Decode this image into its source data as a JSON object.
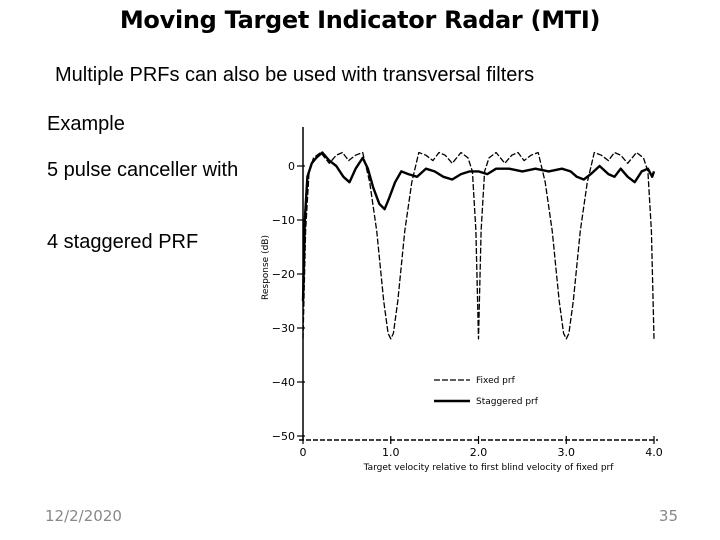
{
  "slide": {
    "title": "Moving Target Indicator Radar (MTI)",
    "subtitle": "Multiple PRFs can also be used with transversal filters",
    "lines": [
      "Example",
      "5 pulse canceller with",
      "4 staggered PRF"
    ],
    "date": "12/2/2020",
    "page": "35"
  },
  "chart_data": {
    "type": "line",
    "xlabel": "Target velocity relative to first blind velocity of fixed prf",
    "ylabel": "Response (dB)",
    "xlim": [
      0,
      4.0
    ],
    "ylim": [
      -50,
      5
    ],
    "x_ticks": [
      "0",
      "1.0",
      "2.0",
      "3.0",
      "4.0"
    ],
    "y_ticks": [
      "0",
      "−10",
      "−20",
      "−30",
      "−40",
      "−50"
    ],
    "legend_position": "lower-right",
    "series": [
      {
        "name": "Fixed prf",
        "style": "dashed-thin",
        "points": [
          [
            0,
            -32
          ],
          [
            0.03,
            -12
          ],
          [
            0.07,
            -1
          ],
          [
            0.12,
            1.5
          ],
          [
            0.2,
            2.5
          ],
          [
            0.3,
            0.5
          ],
          [
            0.38,
            2
          ],
          [
            0.45,
            2.5
          ],
          [
            0.52,
            1
          ],
          [
            0.6,
            2
          ],
          [
            0.68,
            2.5
          ],
          [
            0.76,
            -3
          ],
          [
            0.84,
            -12
          ],
          [
            0.92,
            -25
          ],
          [
            0.97,
            -31
          ],
          [
            1.0,
            -32
          ],
          [
            1.03,
            -31
          ],
          [
            1.08,
            -25
          ],
          [
            1.16,
            -12
          ],
          [
            1.24,
            -3
          ],
          [
            1.32,
            2.5
          ],
          [
            1.4,
            2
          ],
          [
            1.48,
            1
          ],
          [
            1.55,
            2.5
          ],
          [
            1.62,
            2
          ],
          [
            1.7,
            0.5
          ],
          [
            1.8,
            2.5
          ],
          [
            1.88,
            1.5
          ],
          [
            1.93,
            -1
          ],
          [
            1.97,
            -12
          ],
          [
            2.0,
            -32
          ],
          [
            2.03,
            -12
          ],
          [
            2.07,
            -1
          ],
          [
            2.12,
            1.5
          ],
          [
            2.2,
            2.5
          ],
          [
            2.3,
            0.5
          ],
          [
            2.38,
            2
          ],
          [
            2.45,
            2.5
          ],
          [
            2.52,
            1
          ],
          [
            2.6,
            2
          ],
          [
            2.68,
            2.5
          ],
          [
            2.76,
            -3
          ],
          [
            2.84,
            -12
          ],
          [
            2.92,
            -25
          ],
          [
            2.97,
            -31
          ],
          [
            3.0,
            -32
          ],
          [
            3.03,
            -31
          ],
          [
            3.08,
            -25
          ],
          [
            3.16,
            -12
          ],
          [
            3.24,
            -3
          ],
          [
            3.32,
            2.5
          ],
          [
            3.4,
            2
          ],
          [
            3.48,
            1
          ],
          [
            3.55,
            2.5
          ],
          [
            3.62,
            2
          ],
          [
            3.7,
            0.5
          ],
          [
            3.8,
            2.5
          ],
          [
            3.88,
            1.5
          ],
          [
            3.93,
            -1
          ],
          [
            3.97,
            -12
          ],
          [
            4.0,
            -32
          ]
        ]
      },
      {
        "name": "Staggered prf",
        "style": "solid-thick",
        "points": [
          [
            0,
            -25
          ],
          [
            0.02,
            -10
          ],
          [
            0.05,
            -2
          ],
          [
            0.1,
            0.5
          ],
          [
            0.15,
            1.5
          ],
          [
            0.22,
            2.5
          ],
          [
            0.3,
            1
          ],
          [
            0.38,
            0
          ],
          [
            0.46,
            -2
          ],
          [
            0.53,
            -3
          ],
          [
            0.6,
            -0.5
          ],
          [
            0.68,
            1.5
          ],
          [
            0.74,
            -0.5
          ],
          [
            0.8,
            -4
          ],
          [
            0.87,
            -7
          ],
          [
            0.93,
            -8
          ],
          [
            0.98,
            -6
          ],
          [
            1.05,
            -3
          ],
          [
            1.12,
            -1
          ],
          [
            1.2,
            -1.5
          ],
          [
            1.3,
            -2
          ],
          [
            1.4,
            -0.5
          ],
          [
            1.5,
            -1
          ],
          [
            1.6,
            -2
          ],
          [
            1.7,
            -2.5
          ],
          [
            1.8,
            -1.5
          ],
          [
            1.9,
            -1
          ],
          [
            2.0,
            -1
          ],
          [
            2.1,
            -1.5
          ],
          [
            2.2,
            -0.5
          ],
          [
            2.35,
            -0.5
          ],
          [
            2.5,
            -1
          ],
          [
            2.65,
            -0.5
          ],
          [
            2.8,
            -1
          ],
          [
            2.95,
            -0.5
          ],
          [
            3.05,
            -1
          ],
          [
            3.12,
            -2
          ],
          [
            3.2,
            -2.5
          ],
          [
            3.28,
            -1.5
          ],
          [
            3.38,
            0
          ],
          [
            3.48,
            -1.5
          ],
          [
            3.55,
            -2
          ],
          [
            3.62,
            -0.5
          ],
          [
            3.7,
            -2
          ],
          [
            3.78,
            -3
          ],
          [
            3.86,
            -1
          ],
          [
            3.93,
            -0.5
          ],
          [
            3.98,
            -2
          ],
          [
            4.0,
            -1
          ]
        ]
      }
    ]
  }
}
